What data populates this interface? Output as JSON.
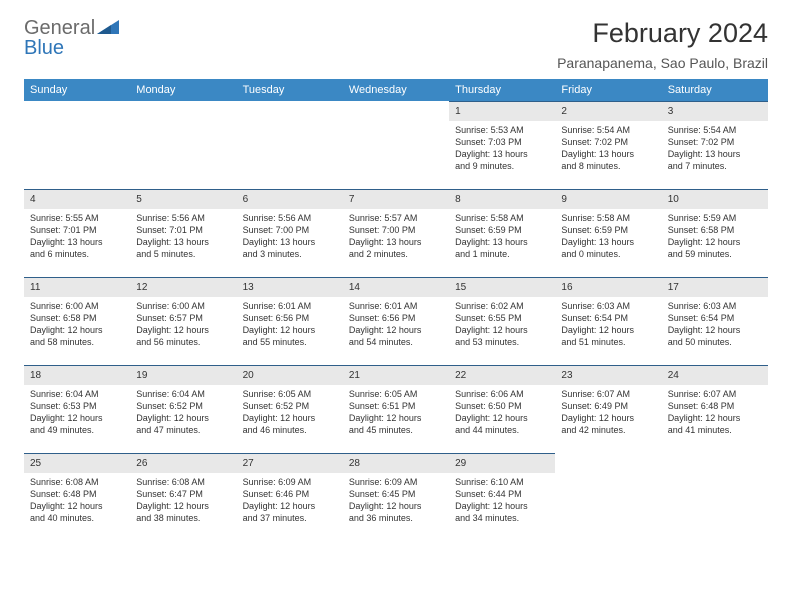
{
  "brand": {
    "part1": "General",
    "part2": "Blue"
  },
  "title": "February 2024",
  "location": "Paranapanema, Sao Paulo, Brazil",
  "colors": {
    "header_bg": "#3b88c4",
    "header_text": "#ffffff",
    "daynum_bg": "#e8e8e8",
    "daynum_border": "#2f5f8a",
    "logo_gray": "#6b6b6b",
    "logo_blue": "#2f76b8",
    "background": "#ffffff"
  },
  "weekdays": [
    "Sunday",
    "Monday",
    "Tuesday",
    "Wednesday",
    "Thursday",
    "Friday",
    "Saturday"
  ],
  "weeks": [
    [
      {
        "empty": true
      },
      {
        "empty": true
      },
      {
        "empty": true
      },
      {
        "empty": true
      },
      {
        "day": "1",
        "sunrise": "Sunrise: 5:53 AM",
        "sunset": "Sunset: 7:03 PM",
        "daylight1": "Daylight: 13 hours",
        "daylight2": "and 9 minutes."
      },
      {
        "day": "2",
        "sunrise": "Sunrise: 5:54 AM",
        "sunset": "Sunset: 7:02 PM",
        "daylight1": "Daylight: 13 hours",
        "daylight2": "and 8 minutes."
      },
      {
        "day": "3",
        "sunrise": "Sunrise: 5:54 AM",
        "sunset": "Sunset: 7:02 PM",
        "daylight1": "Daylight: 13 hours",
        "daylight2": "and 7 minutes."
      }
    ],
    [
      {
        "day": "4",
        "sunrise": "Sunrise: 5:55 AM",
        "sunset": "Sunset: 7:01 PM",
        "daylight1": "Daylight: 13 hours",
        "daylight2": "and 6 minutes."
      },
      {
        "day": "5",
        "sunrise": "Sunrise: 5:56 AM",
        "sunset": "Sunset: 7:01 PM",
        "daylight1": "Daylight: 13 hours",
        "daylight2": "and 5 minutes."
      },
      {
        "day": "6",
        "sunrise": "Sunrise: 5:56 AM",
        "sunset": "Sunset: 7:00 PM",
        "daylight1": "Daylight: 13 hours",
        "daylight2": "and 3 minutes."
      },
      {
        "day": "7",
        "sunrise": "Sunrise: 5:57 AM",
        "sunset": "Sunset: 7:00 PM",
        "daylight1": "Daylight: 13 hours",
        "daylight2": "and 2 minutes."
      },
      {
        "day": "8",
        "sunrise": "Sunrise: 5:58 AM",
        "sunset": "Sunset: 6:59 PM",
        "daylight1": "Daylight: 13 hours",
        "daylight2": "and 1 minute."
      },
      {
        "day": "9",
        "sunrise": "Sunrise: 5:58 AM",
        "sunset": "Sunset: 6:59 PM",
        "daylight1": "Daylight: 13 hours",
        "daylight2": "and 0 minutes."
      },
      {
        "day": "10",
        "sunrise": "Sunrise: 5:59 AM",
        "sunset": "Sunset: 6:58 PM",
        "daylight1": "Daylight: 12 hours",
        "daylight2": "and 59 minutes."
      }
    ],
    [
      {
        "day": "11",
        "sunrise": "Sunrise: 6:00 AM",
        "sunset": "Sunset: 6:58 PM",
        "daylight1": "Daylight: 12 hours",
        "daylight2": "and 58 minutes."
      },
      {
        "day": "12",
        "sunrise": "Sunrise: 6:00 AM",
        "sunset": "Sunset: 6:57 PM",
        "daylight1": "Daylight: 12 hours",
        "daylight2": "and 56 minutes."
      },
      {
        "day": "13",
        "sunrise": "Sunrise: 6:01 AM",
        "sunset": "Sunset: 6:56 PM",
        "daylight1": "Daylight: 12 hours",
        "daylight2": "and 55 minutes."
      },
      {
        "day": "14",
        "sunrise": "Sunrise: 6:01 AM",
        "sunset": "Sunset: 6:56 PM",
        "daylight1": "Daylight: 12 hours",
        "daylight2": "and 54 minutes."
      },
      {
        "day": "15",
        "sunrise": "Sunrise: 6:02 AM",
        "sunset": "Sunset: 6:55 PM",
        "daylight1": "Daylight: 12 hours",
        "daylight2": "and 53 minutes."
      },
      {
        "day": "16",
        "sunrise": "Sunrise: 6:03 AM",
        "sunset": "Sunset: 6:54 PM",
        "daylight1": "Daylight: 12 hours",
        "daylight2": "and 51 minutes."
      },
      {
        "day": "17",
        "sunrise": "Sunrise: 6:03 AM",
        "sunset": "Sunset: 6:54 PM",
        "daylight1": "Daylight: 12 hours",
        "daylight2": "and 50 minutes."
      }
    ],
    [
      {
        "day": "18",
        "sunrise": "Sunrise: 6:04 AM",
        "sunset": "Sunset: 6:53 PM",
        "daylight1": "Daylight: 12 hours",
        "daylight2": "and 49 minutes."
      },
      {
        "day": "19",
        "sunrise": "Sunrise: 6:04 AM",
        "sunset": "Sunset: 6:52 PM",
        "daylight1": "Daylight: 12 hours",
        "daylight2": "and 47 minutes."
      },
      {
        "day": "20",
        "sunrise": "Sunrise: 6:05 AM",
        "sunset": "Sunset: 6:52 PM",
        "daylight1": "Daylight: 12 hours",
        "daylight2": "and 46 minutes."
      },
      {
        "day": "21",
        "sunrise": "Sunrise: 6:05 AM",
        "sunset": "Sunset: 6:51 PM",
        "daylight1": "Daylight: 12 hours",
        "daylight2": "and 45 minutes."
      },
      {
        "day": "22",
        "sunrise": "Sunrise: 6:06 AM",
        "sunset": "Sunset: 6:50 PM",
        "daylight1": "Daylight: 12 hours",
        "daylight2": "and 44 minutes."
      },
      {
        "day": "23",
        "sunrise": "Sunrise: 6:07 AM",
        "sunset": "Sunset: 6:49 PM",
        "daylight1": "Daylight: 12 hours",
        "daylight2": "and 42 minutes."
      },
      {
        "day": "24",
        "sunrise": "Sunrise: 6:07 AM",
        "sunset": "Sunset: 6:48 PM",
        "daylight1": "Daylight: 12 hours",
        "daylight2": "and 41 minutes."
      }
    ],
    [
      {
        "day": "25",
        "sunrise": "Sunrise: 6:08 AM",
        "sunset": "Sunset: 6:48 PM",
        "daylight1": "Daylight: 12 hours",
        "daylight2": "and 40 minutes."
      },
      {
        "day": "26",
        "sunrise": "Sunrise: 6:08 AM",
        "sunset": "Sunset: 6:47 PM",
        "daylight1": "Daylight: 12 hours",
        "daylight2": "and 38 minutes."
      },
      {
        "day": "27",
        "sunrise": "Sunrise: 6:09 AM",
        "sunset": "Sunset: 6:46 PM",
        "daylight1": "Daylight: 12 hours",
        "daylight2": "and 37 minutes."
      },
      {
        "day": "28",
        "sunrise": "Sunrise: 6:09 AM",
        "sunset": "Sunset: 6:45 PM",
        "daylight1": "Daylight: 12 hours",
        "daylight2": "and 36 minutes."
      },
      {
        "day": "29",
        "sunrise": "Sunrise: 6:10 AM",
        "sunset": "Sunset: 6:44 PM",
        "daylight1": "Daylight: 12 hours",
        "daylight2": "and 34 minutes."
      },
      {
        "empty": true
      },
      {
        "empty": true
      }
    ]
  ]
}
